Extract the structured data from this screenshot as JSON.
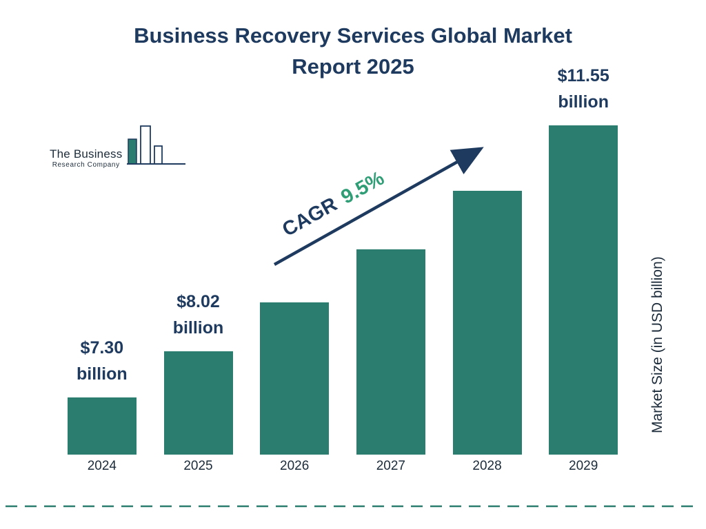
{
  "title": {
    "line1": "Business Recovery Services Global Market",
    "line2": "Report 2025",
    "full": "Business Recovery Services Global Market Report 2025"
  },
  "logo": {
    "name_line1": "The Business",
    "name_line2": "Research Company"
  },
  "cagr": {
    "label": "CAGR",
    "value": "9.5%"
  },
  "y_axis_label": "Market Size (in USD billion)",
  "colors": {
    "bar": "#2a7d6f",
    "navy": "#1e3a5f",
    "cagr-green": "#2f9e77",
    "text-dark": "#1c2b3a"
  },
  "chart_data": {
    "type": "bar",
    "title": "Business Recovery Services Global Market Report 2025",
    "categories": [
      "2024",
      "2025",
      "2026",
      "2027",
      "2028",
      "2029"
    ],
    "values": [
      7.3,
      8.02,
      8.78,
      9.61,
      10.53,
      11.55
    ],
    "value_labels": [
      [
        "$7.30",
        "billion"
      ],
      [
        "$8.02",
        "billion"
      ],
      null,
      null,
      null,
      [
        "$11.55",
        "billion"
      ]
    ],
    "xlabel": "",
    "ylabel": "Market Size (in USD billion)",
    "annotation": "CAGR 9.5%",
    "ylim": [
      6.4,
      12
    ],
    "grid": false,
    "legend": false
  }
}
